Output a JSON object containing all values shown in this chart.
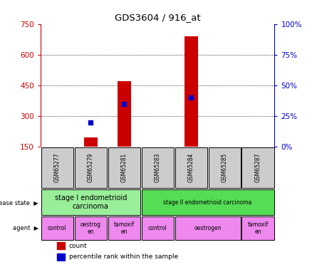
{
  "title": "GDS3604 / 916_at",
  "samples": [
    "GSM65277",
    "GSM65279",
    "GSM65281",
    "GSM65283",
    "GSM65284",
    "GSM65285",
    "GSM65287"
  ],
  "count_values": [
    null,
    195,
    470,
    null,
    690,
    null,
    null
  ],
  "percentile_values_pct": [
    null,
    20,
    35,
    null,
    40,
    null,
    null
  ],
  "ylim_left": [
    150,
    750
  ],
  "ylim_right": [
    0,
    100
  ],
  "yticks_left": [
    150,
    300,
    450,
    600,
    750
  ],
  "yticks_right": [
    0,
    25,
    50,
    75,
    100
  ],
  "left_color": "#cc0000",
  "right_color": "#0000cc",
  "disease_state": [
    {
      "label": "stage I endometrioid\ncarcinoma",
      "span": [
        0,
        3
      ],
      "color": "#99ee99"
    },
    {
      "label": "stage II endometrioid carcinoma",
      "span": [
        3,
        7
      ],
      "color": "#55dd55"
    }
  ],
  "agent": [
    {
      "label": "control",
      "span": [
        0,
        1
      ],
      "color": "#ee88ee"
    },
    {
      "label": "oestrog\nen",
      "span": [
        1,
        2
      ],
      "color": "#ee88ee"
    },
    {
      "label": "tamoxif\nen",
      "span": [
        2,
        3
      ],
      "color": "#ee88ee"
    },
    {
      "label": "control",
      "span": [
        3,
        4
      ],
      "color": "#ee88ee"
    },
    {
      "label": "oestrogen",
      "span": [
        4,
        6
      ],
      "color": "#ee88ee"
    },
    {
      "label": "tamoxif\nen",
      "span": [
        6,
        7
      ],
      "color": "#ee88ee"
    }
  ],
  "legend_count_color": "#cc0000",
  "legend_pct_color": "#0000cc",
  "sample_box_color": "#cccccc",
  "background_color": "#ffffff"
}
